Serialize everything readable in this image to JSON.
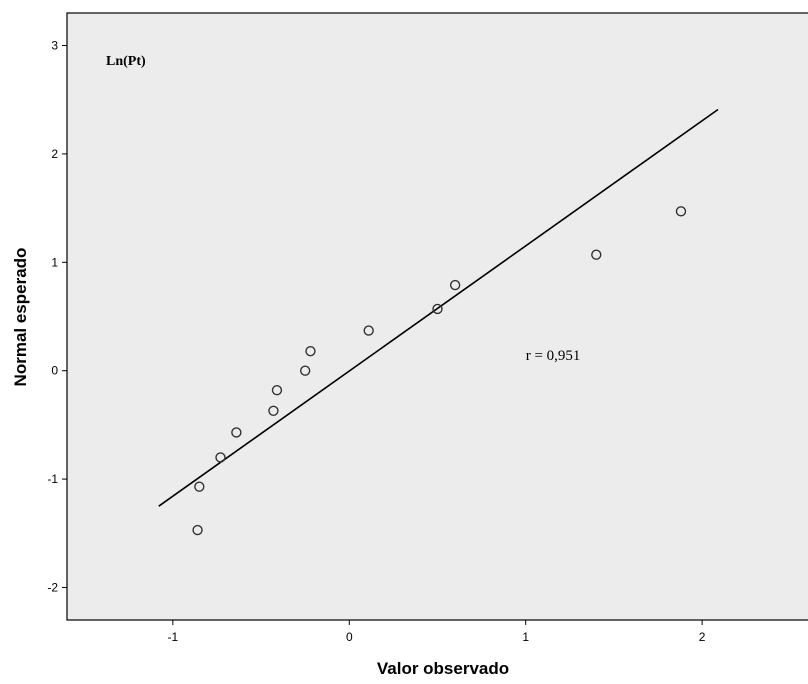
{
  "chart_data": {
    "type": "scatter",
    "title": "Ln(Pt)",
    "xlabel": "Valor observado",
    "ylabel": "Normal esperado",
    "xlim": [
      -1.6,
      2.6
    ],
    "ylim": [
      -2.3,
      3.3
    ],
    "x_ticks": [
      -1,
      0,
      1,
      2
    ],
    "y_ticks": [
      -2,
      -1,
      0,
      1,
      2,
      3
    ],
    "grid": false,
    "series": [
      {
        "type": "scatter",
        "marker": "open-circle",
        "points": [
          {
            "x": -0.86,
            "y": -1.47
          },
          {
            "x": -0.85,
            "y": -1.07
          },
          {
            "x": -0.73,
            "y": -0.8
          },
          {
            "x": -0.64,
            "y": -0.57
          },
          {
            "x": -0.43,
            "y": -0.37
          },
          {
            "x": -0.41,
            "y": -0.18
          },
          {
            "x": -0.25,
            "y": 0.0
          },
          {
            "x": -0.22,
            "y": 0.18
          },
          {
            "x": 0.11,
            "y": 0.37
          },
          {
            "x": 0.5,
            "y": 0.57
          },
          {
            "x": 0.6,
            "y": 0.79
          },
          {
            "x": 1.4,
            "y": 1.07
          },
          {
            "x": 1.88,
            "y": 1.47
          }
        ]
      },
      {
        "type": "line",
        "points": [
          {
            "x": -1.08,
            "y": -1.25
          },
          {
            "x": 2.09,
            "y": 2.41
          }
        ]
      }
    ],
    "annotations": [
      {
        "text": "r = 0,951",
        "x": 1.0,
        "y": 0.1
      }
    ],
    "colors": {
      "plot_background": "#ececec",
      "marker": "#333333",
      "line": "#000000",
      "axis": "#000000"
    }
  }
}
